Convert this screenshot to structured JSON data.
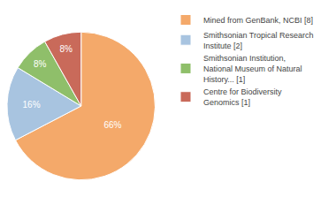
{
  "chart_data": {
    "type": "pie",
    "categories": [
      "Mined from GenBank, NCBI [8]",
      "Smithsonian Tropical Research\nInstitute [2]",
      "Smithsonian Institution,\nNational Museum of Natural\nHistory... [1]",
      "Centre for Biodiversity\nGenomics [1]"
    ],
    "values": [
      66,
      16,
      8,
      8
    ],
    "value_labels": [
      "66%",
      "16%",
      "8%",
      "8%"
    ],
    "colors": [
      "#F4A96A",
      "#A8C4E0",
      "#8FBF6A",
      "#C96A5A"
    ],
    "data_labels": true,
    "legend": "right"
  }
}
